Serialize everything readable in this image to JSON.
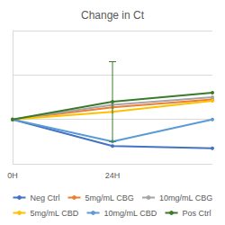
{
  "chart_data": {
    "type": "line",
    "title": "Change in Ct",
    "categories": [
      "0H",
      "24H",
      null
    ],
    "series": [
      {
        "name": "Neg Ctrl",
        "color": "#4472c4",
        "values": [
          0,
          -0.6,
          -0.65
        ]
      },
      {
        "name": "5mg/mL CBG",
        "color": "#ed7d31",
        "values": [
          0,
          0.27,
          0.45
        ]
      },
      {
        "name": "10mg/mL CBG",
        "color": "#a5a5a5",
        "values": [
          0,
          0.33,
          0.5
        ]
      },
      {
        "name": "5mg/mL CBD",
        "color": "#ffc000",
        "values": [
          0,
          0.17,
          0.42
        ]
      },
      {
        "name": "10mg/mL CBD",
        "color": "#5b9bd5",
        "values": [
          0,
          -0.5,
          0.0
        ]
      },
      {
        "name": "Pos Ctrl",
        "color": "#3b7a2a",
        "values": [
          0,
          0.4,
          0.6
        ],
        "errors": [
          null,
          0.9,
          null
        ]
      }
    ],
    "ylim": [
      -1,
      2
    ],
    "yticks": [
      -1,
      0,
      1,
      2
    ],
    "grid": true,
    "legend": "bottom",
    "tick_labels": "x",
    "marker": "circle"
  }
}
